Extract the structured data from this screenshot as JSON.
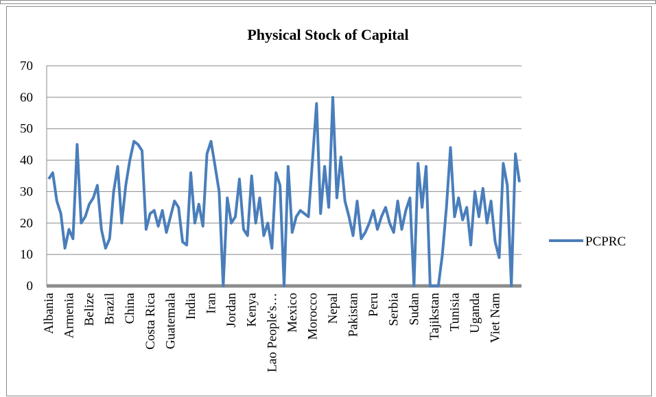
{
  "chart_data": {
    "type": "line",
    "title": "Physical Stock of Capital",
    "categories": [
      "Albania",
      null,
      null,
      null,
      null,
      "Armenia",
      null,
      null,
      null,
      null,
      "Belize",
      null,
      null,
      null,
      null,
      "Brazil",
      null,
      null,
      null,
      null,
      "China",
      null,
      null,
      null,
      null,
      "Costa Rica",
      null,
      null,
      null,
      null,
      "Guatemala",
      null,
      null,
      null,
      null,
      "India",
      null,
      null,
      null,
      null,
      "Iran",
      null,
      null,
      null,
      null,
      "Jordan",
      null,
      null,
      null,
      null,
      "Kenya",
      null,
      null,
      null,
      null,
      "Lao People's…",
      null,
      null,
      null,
      null,
      "Mexico",
      null,
      null,
      null,
      null,
      "Morocco",
      null,
      null,
      null,
      null,
      "Nepal",
      null,
      null,
      null,
      null,
      "Pakistan",
      null,
      null,
      null,
      null,
      "Peru",
      null,
      null,
      null,
      null,
      "Serbia",
      null,
      null,
      null,
      null,
      "Sudan",
      null,
      null,
      null,
      null,
      "Tajikstan",
      null,
      null,
      null,
      null,
      "Tunisia",
      null,
      null,
      null,
      null,
      "Uganda",
      null,
      null,
      null,
      null,
      "Viet Nam",
      null,
      null,
      null,
      null,
      null,
      null
    ],
    "series": [
      {
        "name": "PCPRC",
        "color": "#4a7ebb",
        "values": [
          34,
          36,
          27,
          23,
          12,
          18,
          15,
          45,
          20,
          22,
          26,
          28,
          32,
          18,
          12,
          15,
          30,
          38,
          20,
          32,
          40,
          46,
          45,
          43,
          18,
          23,
          24,
          19,
          24,
          17,
          22,
          27,
          25,
          14,
          13,
          36,
          20,
          26,
          19,
          42,
          46,
          38,
          30,
          0,
          28,
          20,
          22,
          34,
          18,
          16,
          35,
          20,
          28,
          16,
          20,
          12,
          36,
          32,
          0,
          38,
          17,
          22,
          24,
          23,
          22,
          40,
          58,
          23,
          38,
          25,
          60,
          28,
          41,
          27,
          22,
          16,
          27,
          15,
          17,
          20,
          24,
          18,
          22,
          25,
          20,
          17,
          27,
          18,
          24,
          28,
          0,
          39,
          25,
          38,
          0,
          0,
          0,
          10,
          25,
          44,
          22,
          28,
          21,
          25,
          13,
          30,
          22,
          31,
          20,
          27,
          14,
          9,
          39,
          32,
          0,
          42,
          33
        ]
      }
    ],
    "ylim": [
      0,
      70
    ],
    "yticks": [
      0,
      10,
      20,
      30,
      40,
      50,
      60,
      70
    ],
    "grid": true,
    "legend": "right"
  }
}
